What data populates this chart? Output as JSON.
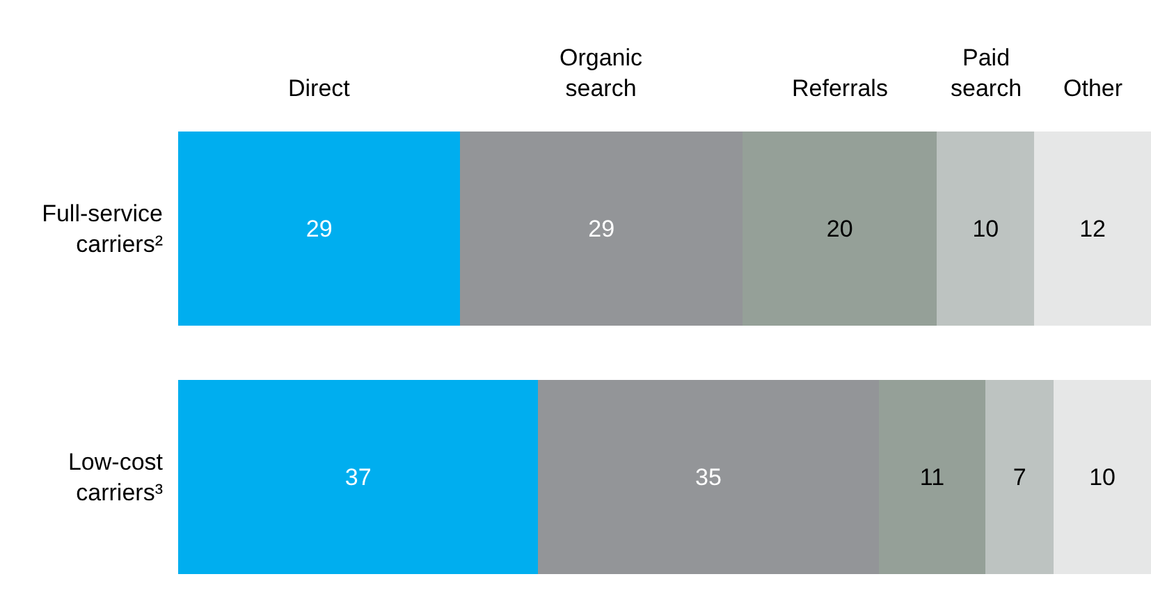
{
  "chart_data": {
    "type": "bar",
    "orientation": "horizontal",
    "stacked": true,
    "data_labels": true,
    "legend": false,
    "tick_labels": "y",
    "categories": [
      "Full-service carriers²",
      "Low-cost carriers³"
    ],
    "series": [
      {
        "name": "Direct",
        "color": "#00aeef",
        "values": [
          29,
          37
        ]
      },
      {
        "name": "Organic search",
        "color": "#939598",
        "values": [
          29,
          35
        ]
      },
      {
        "name": "Referrals",
        "color": "#95a098",
        "values": [
          20,
          11
        ]
      },
      {
        "name": "Paid search",
        "color": "#bdc3c1",
        "values": [
          10,
          7
        ]
      },
      {
        "name": "Other",
        "color": "#e6e7e7",
        "values": [
          12,
          10
        ]
      }
    ]
  }
}
